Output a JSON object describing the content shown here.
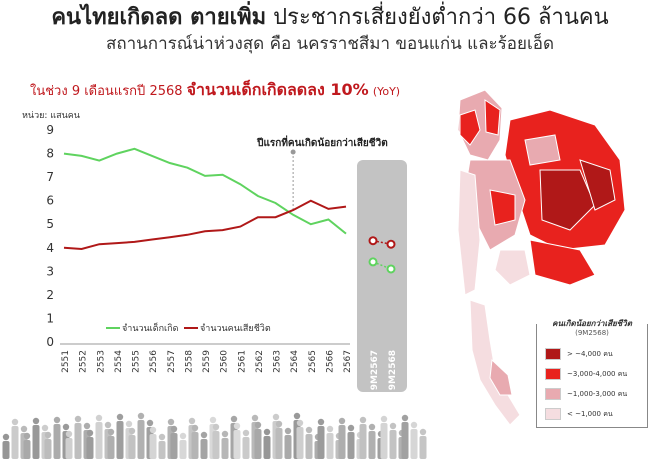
{
  "headline": {
    "part1": "คนไทยเกิดลด ตายเพิ่ม",
    "part2": "ประชากรเสี่ยงยังต่ำกว่า 66 ล้านคน",
    "line2": "สถานการณ์น่าห่วงสุด คือ นครราชสีมา ขอนแก่น และร้อยเอ็ด"
  },
  "subtitle": {
    "lead": "ในช่วง 9 เดือนแรกปี 2568",
    "emph": "จำนวนเด็กเกิดลดลง 10%",
    "yoy": "(YoY)"
  },
  "unit_label": "หน่วย: แสนคน",
  "annotation": "ปีแรกที่คนเกิดน้อยกว่าเสียชีวิต",
  "colors": {
    "births": "#5fd35f",
    "deaths": "#b01818",
    "accent": "#c0191e",
    "band": "#b8b8b8"
  },
  "chart_data": {
    "type": "line",
    "title": "",
    "xlabel": "",
    "ylabel": "หน่วย: แสนคน",
    "ylim": [
      0,
      9
    ],
    "yticks": [
      0,
      1,
      2,
      3,
      4,
      5,
      6,
      7,
      8,
      9
    ],
    "x": [
      "2551",
      "2552",
      "2553",
      "2554",
      "2555",
      "2556",
      "2557",
      "2558",
      "2559",
      "2560",
      "2561",
      "2562",
      "2563",
      "2564",
      "2565",
      "2566",
      "2567"
    ],
    "series": [
      {
        "name": "จำนวนเด็กเกิด",
        "values": [
          8.0,
          7.9,
          7.7,
          8.0,
          8.2,
          7.9,
          7.6,
          7.4,
          7.05,
          7.1,
          6.7,
          6.2,
          5.9,
          5.4,
          5.0,
          5.2,
          4.6
        ]
      },
      {
        "name": "จำนวนคนเสียชีวิต",
        "values": [
          4.0,
          3.95,
          4.15,
          4.2,
          4.25,
          4.35,
          4.45,
          4.55,
          4.7,
          4.75,
          4.9,
          5.3,
          5.3,
          5.6,
          6.0,
          5.65,
          5.75
        ]
      }
    ],
    "grid": false,
    "legend": "bottom",
    "ninemonth": {
      "x": [
        "9M2567",
        "9M2568"
      ],
      "births": [
        3.4,
        3.1
      ],
      "deaths": [
        4.3,
        4.15
      ]
    }
  },
  "map": {
    "legend_title": "คนเกิดน้อยกว่าเสียชีวิต",
    "legend_subtitle": "(9M2568)",
    "items": [
      {
        "label": "> ~4,000 คน",
        "color": "#b01818"
      },
      {
        "label": "~3,000-4,000 คน",
        "color": "#e8221e"
      },
      {
        "label": "~1,000-3,000 คน",
        "color": "#e8aab0"
      },
      {
        "label": "< ~1,000 คน",
        "color": "#f5dde0"
      }
    ]
  }
}
